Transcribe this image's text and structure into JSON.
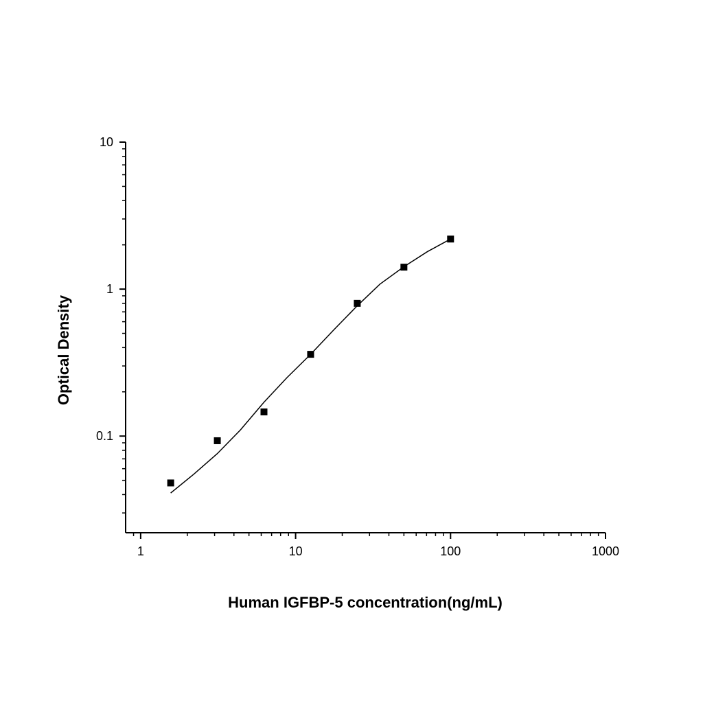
{
  "chart_data": {
    "type": "scatter",
    "x_label": "Human IGFBP-5 concentration(ng/mL)",
    "y_label": "Optical Density",
    "xscale": "log",
    "yscale": "log",
    "xlim": [
      0.8,
      1000
    ],
    "ylim": [
      0.022,
      10
    ],
    "xticks": [
      1,
      10,
      100,
      1000
    ],
    "yticks": [
      0.1,
      1,
      10
    ],
    "xminorticks": [
      0.9,
      2,
      3,
      4,
      5,
      6,
      7,
      8,
      9,
      20,
      30,
      40,
      50,
      60,
      70,
      80,
      90,
      200,
      300,
      400,
      500,
      600,
      700,
      800,
      900
    ],
    "yminorticks": [
      0.03,
      0.04,
      0.05,
      0.06,
      0.07,
      0.08,
      0.09,
      0.2,
      0.3,
      0.4,
      0.5,
      0.6,
      0.7,
      0.8,
      0.9,
      2,
      3,
      4,
      5,
      6,
      7,
      8,
      9
    ],
    "series": [
      {
        "type": "scatter",
        "color": "#000000",
        "x": [
          1.5625,
          3.125,
          6.25,
          12.5,
          25,
          50,
          100
        ],
        "values": [
          0.048,
          0.093,
          0.146,
          0.36,
          0.8,
          1.41,
          2.19
        ]
      },
      {
        "type": "line",
        "color": "#000000",
        "x": [
          1.5625,
          2.2,
          3.125,
          4.4,
          6.25,
          8.8,
          12.5,
          17.7,
          25,
          35,
          50,
          71,
          100
        ],
        "values": [
          0.041,
          0.055,
          0.076,
          0.11,
          0.17,
          0.25,
          0.36,
          0.53,
          0.77,
          1.08,
          1.42,
          1.8,
          2.19
        ]
      }
    ]
  }
}
